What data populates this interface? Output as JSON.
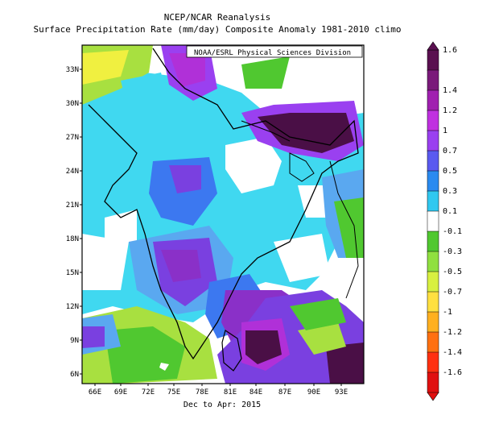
{
  "title_line1": "NCEP/NCAR Reanalysis",
  "title_line2": "Surface Precipitation Rate (mm/day) Composite Anomaly 1981-2010 climo",
  "credit": "NOAA/ESRL Physical Sciences Division",
  "subtitle": "Dec to Apr: 2015",
  "lat_labels": [
    "33N",
    "30N",
    "27N",
    "24N",
    "21N",
    "18N",
    "15N",
    "12N",
    "9N",
    "6N"
  ],
  "lon_labels": [
    "66E",
    "69E",
    "72E",
    "75E",
    "78E",
    "81E",
    "84E",
    "87E",
    "90E",
    "93E"
  ],
  "colorbar": {
    "labels": [
      "1.6",
      "1.4",
      "1.2",
      "1",
      "0.7",
      "0.5",
      "0.3",
      "0.1",
      "-0.1",
      "-0.3",
      "-0.5",
      "-0.7",
      "-1",
      "-1.2",
      "-1.4",
      "-1.6"
    ],
    "colors": [
      "#5a1050",
      "#7a1a7a",
      "#a020b0",
      "#c030e0",
      "#9a40f0",
      "#5a5af0",
      "#2a8af0",
      "#30c8f0",
      "#ffffff",
      "#50c830",
      "#90e040",
      "#d8f040",
      "#ffe040",
      "#ffb020",
      "#ff7010",
      "#ff3010",
      "#e01010"
    ]
  },
  "colors": {
    "dark_purple": "#4a0f46",
    "purple": "#8a30c8",
    "magenta": "#b030d8",
    "violet": "#7a40e0",
    "blue": "#3c78f0",
    "light_blue": "#5aa8f0",
    "cyan": "#40d8f0",
    "green": "#50c830",
    "yellow_green": "#a8e040",
    "yellow": "#f0f040"
  }
}
